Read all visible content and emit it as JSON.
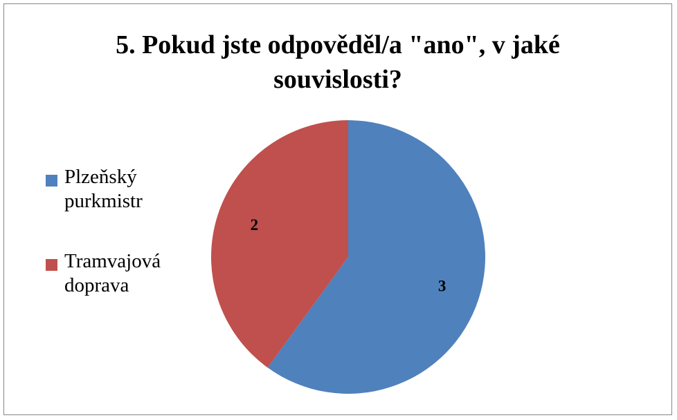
{
  "chart_data": {
    "type": "pie",
    "title_lines": [
      "5. Pokud jste odpověděl/a \"ano\", v jaké",
      "souvislosti?"
    ],
    "categories": [
      "Plzeňský purkmistr",
      "Tramvajová doprava"
    ],
    "legend_lines": [
      [
        "Plzeňský",
        "purkmistr"
      ],
      [
        "Tramvajová",
        "doprava"
      ]
    ],
    "values": [
      3,
      2
    ],
    "data_labels": [
      "3",
      "2"
    ],
    "colors": [
      "#4F81BD",
      "#C0504D"
    ],
    "legend_position": "left",
    "start_angle": "12 o'clock",
    "direction": "clockwise"
  }
}
